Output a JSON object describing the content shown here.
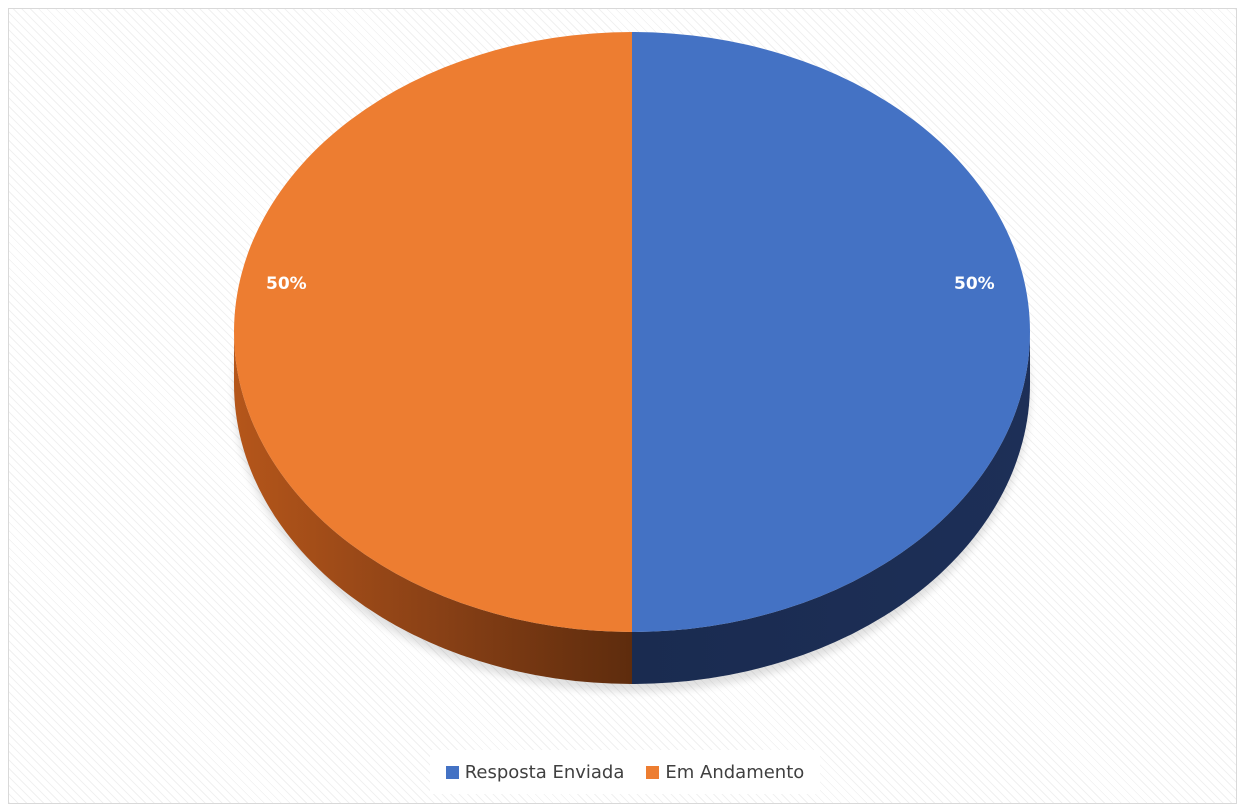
{
  "chart_data": {
    "type": "pie",
    "categories": [
      "Resposta Enviada",
      "Em Andamento"
    ],
    "values": [
      50,
      50
    ],
    "data_labels": [
      "50%",
      "50%"
    ],
    "colors": [
      "#4472C4",
      "#ED7D31"
    ],
    "title": "",
    "legend": "bottom",
    "style": "3d"
  }
}
